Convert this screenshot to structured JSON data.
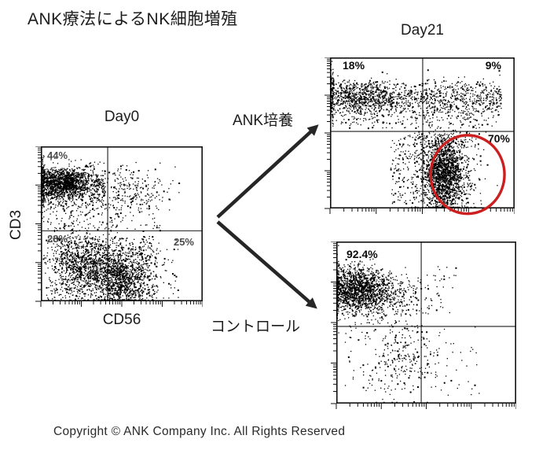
{
  "title": "ANK療法によるNK細胞増殖",
  "footer": {
    "copyright": "Copyright ©  ANK Company Inc.  All Rights Reserved"
  },
  "colors": {
    "dot": "#000000",
    "axis": "#111111",
    "crosshair": "#1c1c1c",
    "highlight_circle": "#cc1f1f",
    "arrow": "#262626"
  },
  "chart_data": [
    {
      "id": "day0",
      "type": "scatter",
      "title": "Day0",
      "xlabel": "CD56",
      "ylabel": "CD3",
      "x_scale": "log, 4 decades, unlabeled ticks",
      "y_scale": "log, 4 decades, unlabeled ticks",
      "seed": 7,
      "quadrant_gate": {
        "x_frac": 0.413,
        "y_frac": 0.545
      },
      "quadrant_labels": {
        "upper_left": "44%",
        "lower_left": "28%",
        "lower_right": "25%"
      },
      "populations": [
        {
          "kind": "gauss",
          "n": 1100,
          "cx": 0.13,
          "cy": 0.24,
          "sx": 0.085,
          "sy": 0.045
        },
        {
          "kind": "band",
          "n": 600,
          "x0": 0.01,
          "x1": 0.4,
          "cy": 0.26,
          "sy": 0.07
        },
        {
          "kind": "band",
          "n": 150,
          "x0": 0.0,
          "x1": 0.02,
          "cy": 0.25,
          "sy": 0.08
        },
        {
          "kind": "gauss",
          "n": 220,
          "cx": 0.55,
          "cy": 0.27,
          "sx": 0.13,
          "sy": 0.07
        },
        {
          "kind": "uniform",
          "n": 130,
          "x0": 0.04,
          "x1": 0.5,
          "y0": 0.36,
          "y1": 0.55
        },
        {
          "kind": "gauss",
          "n": 900,
          "cx": 0.27,
          "cy": 0.76,
          "sx": 0.1,
          "sy": 0.1
        },
        {
          "kind": "gauss",
          "n": 1000,
          "cx": 0.5,
          "cy": 0.85,
          "sx": 0.085,
          "sy": 0.09
        },
        {
          "kind": "uniform",
          "n": 550,
          "x0": 0.02,
          "x1": 0.72,
          "y0": 0.58,
          "y1": 0.995
        },
        {
          "kind": "uniform",
          "n": 90,
          "x0": 0.55,
          "x1": 0.85,
          "y0": 0.6,
          "y1": 0.98
        },
        {
          "kind": "uniform",
          "n": 60,
          "x0": 0.45,
          "x1": 0.8,
          "y0": 0.3,
          "y1": 0.55
        }
      ]
    },
    {
      "id": "day21_ank",
      "type": "scatter",
      "title": "Day21",
      "condition": "ANK培養",
      "xlabel": "CD56",
      "ylabel": "CD3",
      "seed": 13,
      "quadrant_gate": {
        "x_frac": 0.502,
        "y_frac": 0.49
      },
      "quadrant_labels": {
        "upper_left": "18%",
        "upper_right": "9%",
        "lower_right": "70%"
      },
      "highlight_ellipse": {
        "cx_frac": 0.745,
        "cy_frac": 0.775,
        "rx_frac": 0.2,
        "ry_frac": 0.26
      },
      "populations": [
        {
          "kind": "band",
          "n": 900,
          "x0": 0.01,
          "x1": 0.93,
          "cy": 0.27,
          "sy": 0.055
        },
        {
          "kind": "gauss",
          "n": 500,
          "cx": 0.17,
          "cy": 0.26,
          "sx": 0.1,
          "sy": 0.05
        },
        {
          "kind": "band",
          "n": 120,
          "x0": 0.0,
          "x1": 0.02,
          "cy": 0.26,
          "sy": 0.09
        },
        {
          "kind": "uniform",
          "n": 220,
          "x0": 0.05,
          "x1": 0.92,
          "y0": 0.33,
          "y1": 0.47
        },
        {
          "kind": "gauss",
          "n": 1500,
          "cx": 0.615,
          "cy": 0.77,
          "sx": 0.05,
          "sy": 0.115
        },
        {
          "kind": "gauss",
          "n": 450,
          "cx": 0.63,
          "cy": 0.77,
          "sx": 0.095,
          "sy": 0.145
        },
        {
          "kind": "uniform",
          "n": 160,
          "x0": 0.33,
          "x1": 0.52,
          "y0": 0.52,
          "y1": 0.97
        },
        {
          "kind": "uniform",
          "n": 90,
          "x0": 0.45,
          "x1": 0.8,
          "y0": 0.49,
          "y1": 0.6
        }
      ]
    },
    {
      "id": "day21_control",
      "type": "scatter",
      "title": "Day21",
      "condition": "コントロール",
      "xlabel": "CD56",
      "ylabel": "CD3",
      "seed": 42,
      "quadrant_gate": {
        "x_frac": 0.472,
        "y_frac": 0.524
      },
      "quadrant_labels": {
        "upper_left": "92.4%"
      },
      "populations": [
        {
          "kind": "gauss",
          "n": 1400,
          "cx": 0.115,
          "cy": 0.295,
          "sx": 0.085,
          "sy": 0.07
        },
        {
          "kind": "gauss",
          "n": 280,
          "cx": 0.28,
          "cy": 0.33,
          "sx": 0.1,
          "sy": 0.06
        },
        {
          "kind": "band",
          "n": 120,
          "x0": 0.0,
          "x1": 0.015,
          "cy": 0.3,
          "sy": 0.09
        },
        {
          "kind": "uniform",
          "n": 50,
          "x0": 0.33,
          "x1": 0.6,
          "y0": 0.2,
          "y1": 0.45
        },
        {
          "kind": "gauss",
          "n": 260,
          "cx": 0.37,
          "cy": 0.7,
          "sx": 0.09,
          "sy": 0.13
        },
        {
          "kind": "uniform",
          "n": 50,
          "x0": 0.05,
          "x1": 0.3,
          "y0": 0.5,
          "y1": 0.92
        },
        {
          "kind": "uniform",
          "n": 40,
          "x0": 0.5,
          "x1": 0.8,
          "y0": 0.52,
          "y1": 0.95
        },
        {
          "kind": "uniform",
          "n": 18,
          "x0": 0.48,
          "x1": 0.68,
          "y0": 0.15,
          "y1": 0.45
        }
      ]
    }
  ]
}
